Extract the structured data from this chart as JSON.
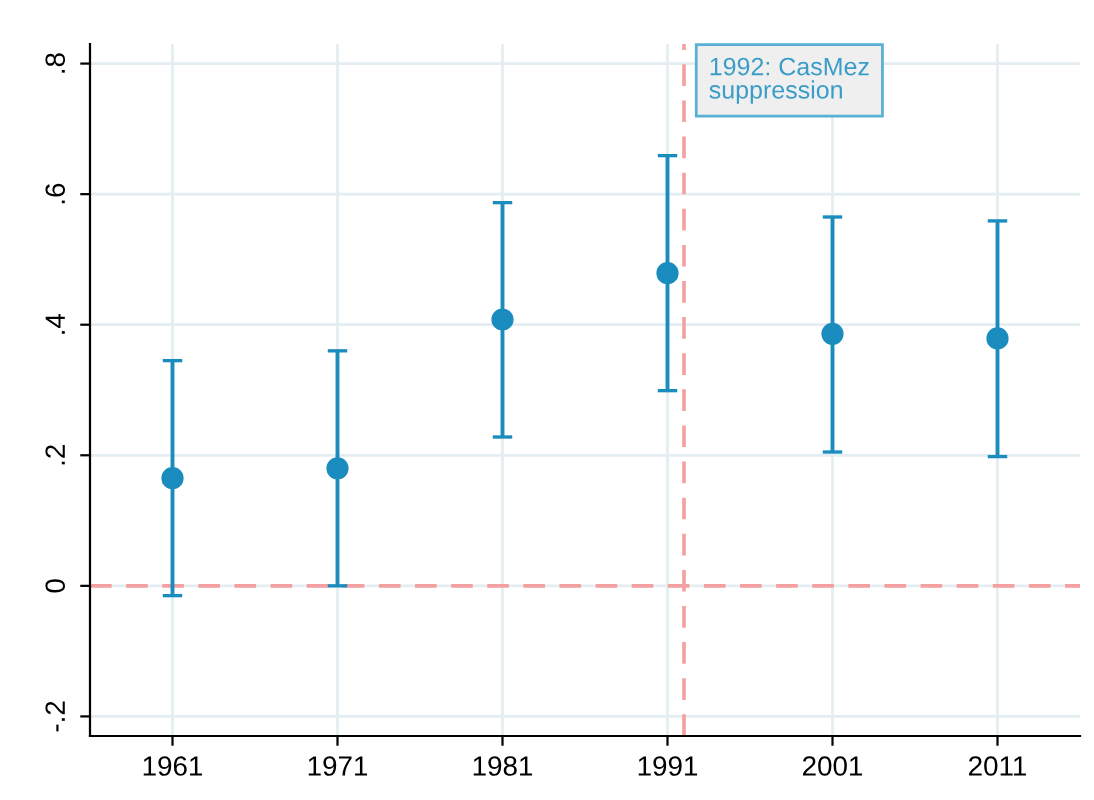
{
  "chart_data": {
    "type": "scatter",
    "x": [
      1961,
      1971,
      1981,
      1991,
      2001,
      2011
    ],
    "series": [
      {
        "color": "#1a8cbe",
        "values": [
          0.165,
          0.18,
          0.408,
          0.479,
          0.386,
          0.379
        ],
        "errors": [
          [
            -0.015,
            0.345
          ],
          [
            0.0,
            0.36
          ],
          [
            0.228,
            0.587
          ],
          [
            0.299,
            0.659
          ],
          [
            0.205,
            0.565
          ],
          [
            0.198,
            0.559
          ]
        ]
      }
    ],
    "xlim": [
      1956,
      2016
    ],
    "xticks": [
      1961,
      1971,
      1981,
      1991,
      2001,
      2011
    ],
    "ylim": [
      -0.23,
      0.83
    ],
    "yticks": [
      {
        "value": -0.2,
        "label": "-.2"
      },
      {
        "value": 0,
        "label": "0"
      },
      {
        "value": 0.2,
        "label": ".2"
      },
      {
        "value": 0.4,
        "label": ".4"
      },
      {
        "value": 0.6,
        "label": ".6"
      },
      {
        "value": 0.8,
        "label": ".8"
      }
    ],
    "grid": true,
    "marker": "circle",
    "legend": false,
    "ref_lines": [
      {
        "axis": "x",
        "value": 1992,
        "label": "1992: CasMez\nsuppression",
        "color": "#f4a0a0",
        "line_style": "dashed"
      },
      {
        "axis": "y",
        "value": 0,
        "color": "#f4a0a0",
        "line_style": "dashed"
      }
    ]
  }
}
